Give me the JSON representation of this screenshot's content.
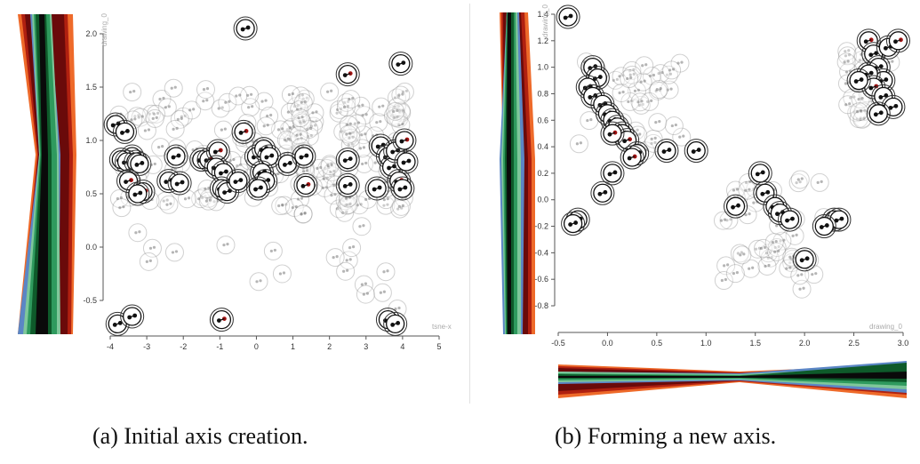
{
  "figure": {
    "captions": {
      "a": "(a) Initial axis creation.",
      "b": "(b) Forming a new axis."
    },
    "panel_a": {
      "x_axis_label": "tsne-x",
      "y_axis_label": "drawing_0",
      "x_ticks": [
        "-4",
        "-3",
        "-2",
        "-1",
        "0",
        "1",
        "2",
        "3",
        "4",
        "5"
      ],
      "y_ticks": [
        "2.0",
        "1.5",
        "1.0",
        "0.5",
        "0.0",
        "-0.5"
      ]
    },
    "panel_b": {
      "x_axis_label": "drawing_0",
      "y_axis_label": "drawing_0",
      "x_ticks": [
        "-0.5",
        "0.0",
        "0.5",
        "1.0",
        "1.5",
        "2.0",
        "2.5",
        "3.0"
      ],
      "y_ticks": [
        "1.4",
        "1.2",
        "1.0",
        "0.8",
        "0.6",
        "0.4",
        "0.2",
        "0.0",
        "-0.2",
        "-0.4",
        "-0.6",
        "-0.8"
      ]
    },
    "glyph_colors": {
      "light_green": "#7fc79a",
      "mid_green": "#2f9a5e",
      "dark_green": "#0e5a2a",
      "black": "#0a0a0a",
      "dark_red": "#6a0a0a",
      "red": "#b02010",
      "orange": "#ee6a2a",
      "blue": "#5b86c5"
    }
  }
}
